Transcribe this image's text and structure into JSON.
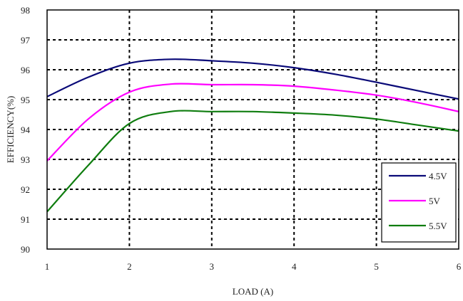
{
  "chart_data": {
    "type": "line",
    "title": "",
    "xlabel": "LOAD (A)",
    "ylabel": "EFFICIENCY(%)",
    "xlim": [
      1,
      6
    ],
    "ylim": [
      90,
      98
    ],
    "x_ticks": [
      1,
      2,
      3,
      4,
      5,
      6
    ],
    "y_ticks": [
      90,
      91,
      92,
      93,
      94,
      95,
      96,
      97,
      98
    ],
    "grid": true,
    "legend_position": "bottom-right",
    "series": [
      {
        "name": "4.5V",
        "color": "#0a0a78",
        "points": [
          [
            1.0,
            95.1
          ],
          [
            1.5,
            95.75
          ],
          [
            2.0,
            96.22
          ],
          [
            2.5,
            96.35
          ],
          [
            3.0,
            96.3
          ],
          [
            3.5,
            96.22
          ],
          [
            4.0,
            96.07
          ],
          [
            4.5,
            95.85
          ],
          [
            5.0,
            95.58
          ],
          [
            5.5,
            95.3
          ],
          [
            6.0,
            95.02
          ]
        ]
      },
      {
        "name": "5V",
        "color": "#ff00ff",
        "points": [
          [
            1.0,
            92.95
          ],
          [
            1.5,
            94.35
          ],
          [
            2.0,
            95.25
          ],
          [
            2.5,
            95.52
          ],
          [
            3.0,
            95.5
          ],
          [
            3.5,
            95.5
          ],
          [
            4.0,
            95.45
          ],
          [
            4.5,
            95.32
          ],
          [
            5.0,
            95.15
          ],
          [
            5.5,
            94.9
          ],
          [
            6.0,
            94.6
          ]
        ]
      },
      {
        "name": "5.5V",
        "color": "#0f7d0f",
        "points": [
          [
            1.0,
            91.25
          ],
          [
            1.5,
            92.8
          ],
          [
            2.0,
            94.2
          ],
          [
            2.5,
            94.6
          ],
          [
            3.0,
            94.6
          ],
          [
            3.5,
            94.6
          ],
          [
            4.0,
            94.55
          ],
          [
            4.5,
            94.48
          ],
          [
            5.0,
            94.35
          ],
          [
            5.5,
            94.15
          ],
          [
            6.0,
            93.95
          ]
        ]
      }
    ]
  }
}
